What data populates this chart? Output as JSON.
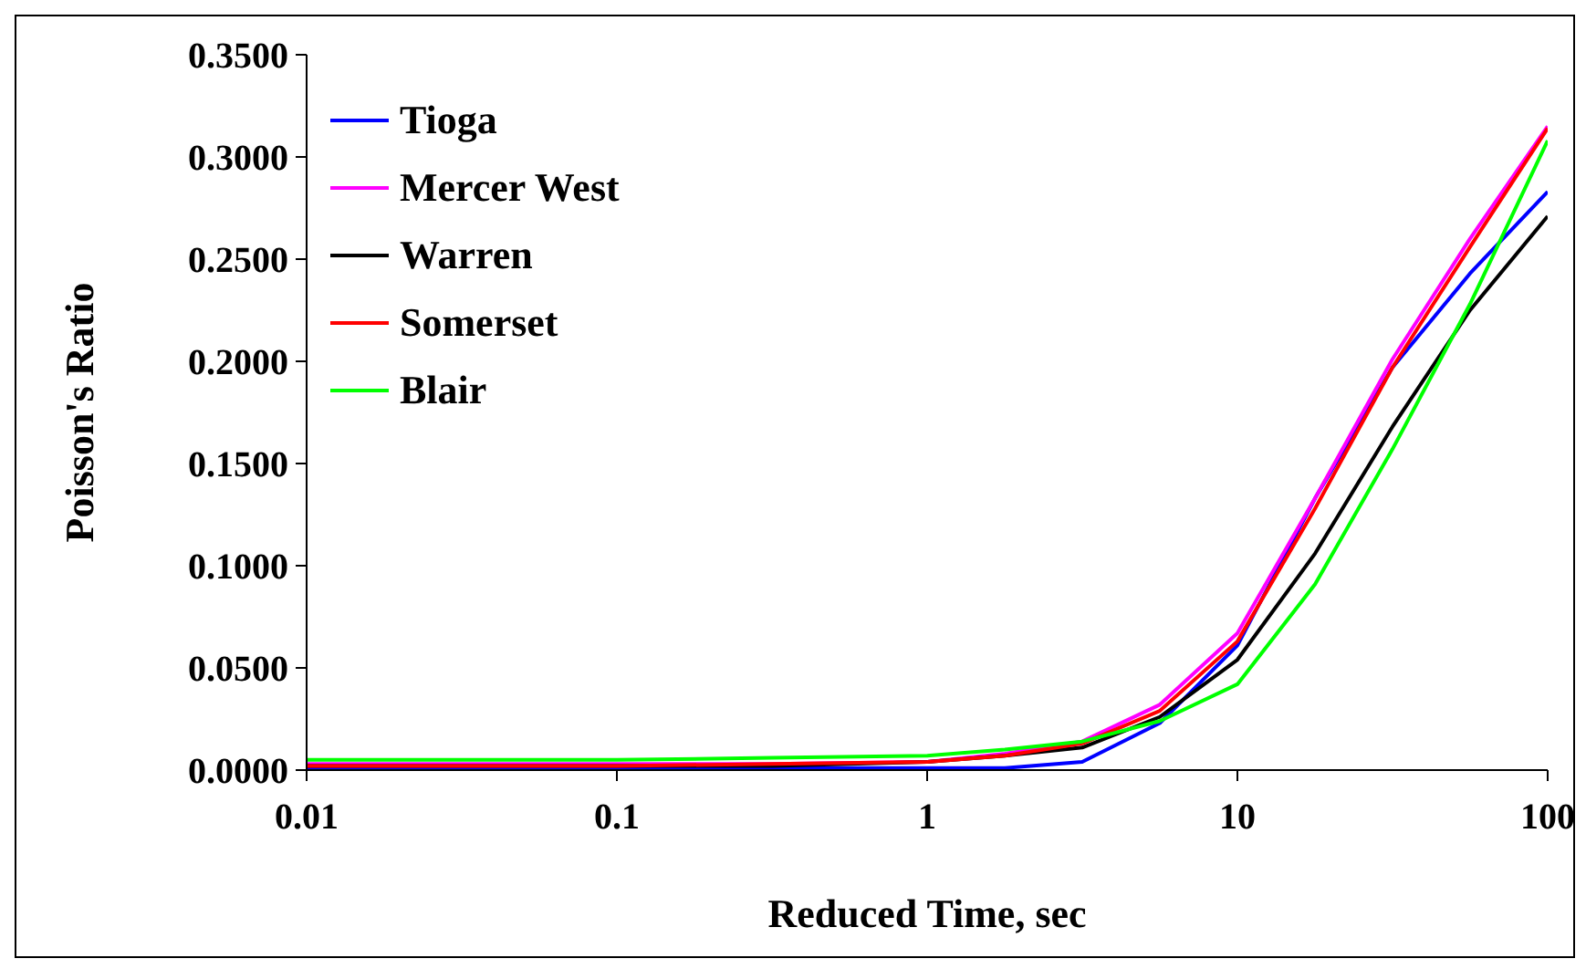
{
  "chart_data": {
    "type": "line",
    "xlabel": "Reduced Time, sec",
    "ylabel": "Poisson's Ratio",
    "log": "x",
    "xlim": [
      0.01,
      100
    ],
    "xticks": [
      0.01,
      0.1,
      1,
      10,
      100
    ],
    "ylim": [
      0,
      0.35
    ],
    "yticks": [
      {
        "value": 0,
        "label": "0.0000"
      },
      {
        "value": 0.05,
        "label": "0.0500"
      },
      {
        "value": 0.1,
        "label": "0.1000"
      },
      {
        "value": 0.15,
        "label": "0.1500"
      },
      {
        "value": 0.2,
        "label": "0.2000"
      },
      {
        "value": 0.25,
        "label": "0.2500"
      },
      {
        "value": 0.3,
        "label": "0.3000"
      },
      {
        "value": 0.35,
        "label": "0.3500"
      }
    ],
    "grid": false,
    "legend": "top left",
    "marker": "none",
    "line_style": "solid",
    "x": [
      0.01,
      0.0316,
      0.1,
      0.316,
      1,
      1.78,
      3.16,
      5.62,
      10,
      17.8,
      31.6,
      56.2,
      100
    ],
    "series": [
      {
        "name": "Tioga",
        "color": "#0000ff",
        "values": [
          0.001,
          0.001,
          0.001,
          0.001,
          0.001,
          0.001,
          0.004,
          0.023,
          0.061,
          0.133,
          0.197,
          0.243,
          0.283
        ]
      },
      {
        "name": "Mercer West",
        "color": "#ff00ff",
        "values": [
          0.003,
          0.003,
          0.003,
          0.003,
          0.004,
          0.008,
          0.014,
          0.032,
          0.067,
          0.133,
          0.201,
          0.26,
          0.315
        ]
      },
      {
        "name": "Warren",
        "color": "#000000",
        "values": [
          0.002,
          0.002,
          0.002,
          0.002,
          0.004,
          0.007,
          0.011,
          0.026,
          0.054,
          0.106,
          0.168,
          0.225,
          0.271
        ]
      },
      {
        "name": "Somerset",
        "color": "#ff0000",
        "values": [
          0.002,
          0.002,
          0.002,
          0.003,
          0.004,
          0.007,
          0.013,
          0.029,
          0.063,
          0.128,
          0.197,
          0.256,
          0.314
        ]
      },
      {
        "name": "Blair",
        "color": "#00ff00",
        "values": [
          0.005,
          0.005,
          0.005,
          0.006,
          0.007,
          0.01,
          0.014,
          0.024,
          0.042,
          0.091,
          0.157,
          0.228,
          0.308
        ]
      }
    ]
  }
}
